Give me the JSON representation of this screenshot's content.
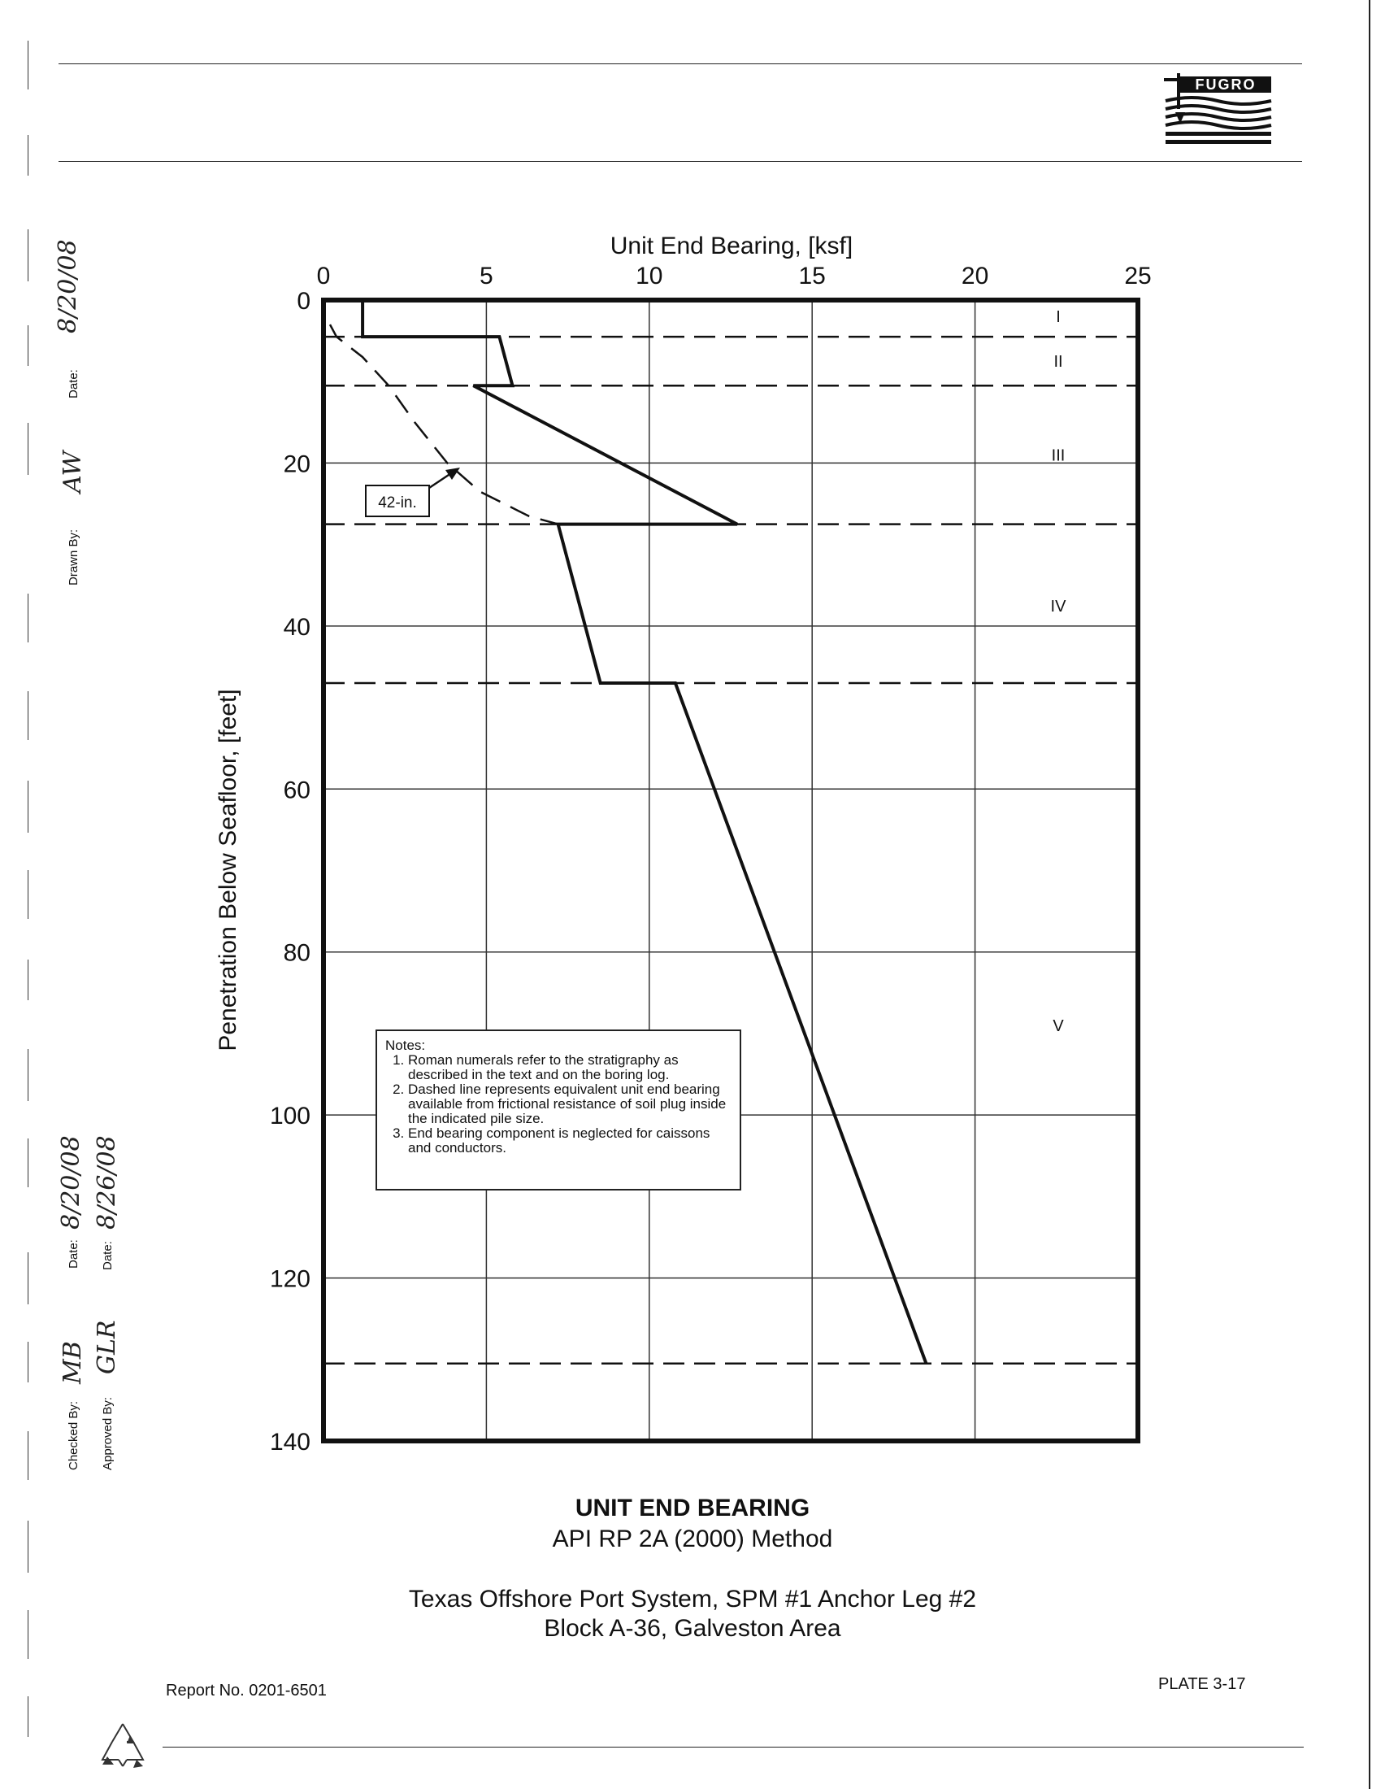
{
  "header": {
    "logo_text": "FUGRO"
  },
  "sidebar": {
    "drawn_by_label": "Drawn By:",
    "drawn_by_signature": "AW",
    "drawn_date_label": "Date:",
    "drawn_date_value": "8/20/08",
    "checked_by_label": "Checked By:",
    "checked_by_signature": "MB",
    "checked_date_label": "Date:",
    "checked_date_value": "8/20/08",
    "approved_by_label": "Approved By:",
    "approved_by_signature": "GLR",
    "approved_date_label": "Date:",
    "approved_date_value": "8/26/08"
  },
  "chart_data": {
    "type": "line",
    "title": "UNIT END BEARING",
    "subtitle": "API RP 2A (2000) Method",
    "xlabel": "Unit End Bearing, [ksf]",
    "ylabel": "Penetration Below Seafloor, [feet]",
    "xlim": [
      0,
      25
    ],
    "ylim": [
      0,
      140
    ],
    "y_inverted": true,
    "x_axis_position": "top",
    "x_ticks": [
      0,
      5,
      10,
      15,
      20,
      25
    ],
    "y_ticks": [
      0,
      20,
      40,
      60,
      80,
      100,
      120,
      140
    ],
    "grid": true,
    "series": [
      {
        "style": "solid",
        "points": [
          [
            1.2,
            0
          ],
          [
            1.2,
            4.5
          ],
          [
            5.4,
            4.5
          ],
          [
            5.8,
            10.5
          ],
          [
            4.6,
            10.5
          ],
          [
            12.7,
            27.5
          ],
          [
            7.2,
            27.5
          ],
          [
            8.5,
            47
          ],
          [
            10.8,
            47
          ],
          [
            18.5,
            130.5
          ]
        ]
      },
      {
        "name": "42-in.",
        "style": "dashed",
        "points": [
          [
            0.2,
            3
          ],
          [
            0.4,
            4.5
          ],
          [
            1.2,
            7
          ],
          [
            2.0,
            10.5
          ],
          [
            2.8,
            15
          ],
          [
            3.8,
            20
          ],
          [
            4.8,
            23.5
          ],
          [
            6.3,
            26.5
          ],
          [
            7.2,
            27.5
          ]
        ]
      }
    ],
    "strata_boundaries": [
      4.5,
      10.5,
      27.5,
      47,
      130.5
    ],
    "strata_labels": [
      {
        "label": "I",
        "depth": 2
      },
      {
        "label": "II",
        "depth": 7.5
      },
      {
        "label": "III",
        "depth": 19
      },
      {
        "label": "IV",
        "depth": 37.5
      },
      {
        "label": "V",
        "depth": 89
      }
    ],
    "annotation": {
      "text": "42-in.",
      "x": 4.2,
      "y": 20.5
    }
  },
  "notes": {
    "heading": "Notes:",
    "items": [
      "Roman numerals refer to the stratigraphy as described in the text and on the boring log.",
      "Dashed line represents equivalent unit end bearing available from frictional resistance of soil plug inside the indicated pile size.",
      "End bearing component is neglected for caissons and conductors."
    ]
  },
  "title_block": {
    "main_title": "UNIT END BEARING",
    "sub_title": "API RP 2A (2000) Method",
    "project_line1": "Texas Offshore Port System, SPM #1 Anchor Leg #2",
    "project_line2": "Block A-36, Galveston Area"
  },
  "footer": {
    "report_no": "Report No. 0201-6501",
    "plate": "PLATE 3-17"
  }
}
